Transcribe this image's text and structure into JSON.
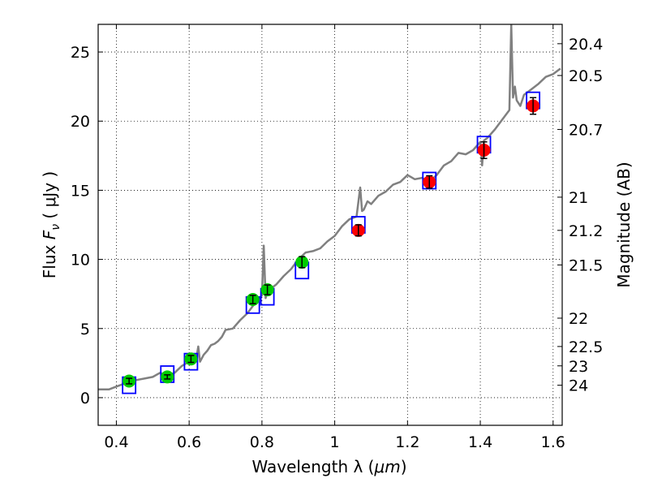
{
  "chart_data": {
    "type": "scatter",
    "title": "",
    "xlabel": "Wavelength  λ (μm)",
    "ylabel": "Flux  Fν  ( μJy )",
    "ylabel_parts": {
      "prefix": "Flux  ",
      "var": "F",
      "sub": "ν",
      "unit": "  ( μJy )"
    },
    "xlabel_parts": {
      "prefix": "Wavelength  λ (",
      "unit": "μm",
      "suffix": ")"
    },
    "y2label": "Magnitude (AB)",
    "xlim": [
      0.35,
      1.625
    ],
    "ylim": [
      -2,
      27
    ],
    "grid": true,
    "x_ticks": [
      {
        "value": 0.4,
        "label": "0.4"
      },
      {
        "value": 0.6,
        "label": "0.6"
      },
      {
        "value": 0.8,
        "label": "0.8"
      },
      {
        "value": 1.0,
        "label": "1"
      },
      {
        "value": 1.2,
        "label": "1.2"
      },
      {
        "value": 1.4,
        "label": "1.4"
      },
      {
        "value": 1.6,
        "label": "1.6"
      }
    ],
    "y_ticks": [
      {
        "value": 0,
        "label": "0"
      },
      {
        "value": 5,
        "label": "5"
      },
      {
        "value": 10,
        "label": "10"
      },
      {
        "value": 15,
        "label": "15"
      },
      {
        "value": 20,
        "label": "20"
      },
      {
        "value": 25,
        "label": "25"
      }
    ],
    "y2_ticks": [
      {
        "flux": 25.6,
        "label": "20.4"
      },
      {
        "flux": 23.3,
        "label": "20.5"
      },
      {
        "flux": 19.4,
        "label": "20.7"
      },
      {
        "flux": 14.5,
        "label": "21"
      },
      {
        "flux": 12.1,
        "label": "21.2"
      },
      {
        "flux": 9.6,
        "label": "21.5"
      },
      {
        "flux": 5.75,
        "label": "22"
      },
      {
        "flux": 3.7,
        "label": "22.5"
      },
      {
        "flux": 2.3,
        "label": "23"
      },
      {
        "flux": 0.9,
        "label": "24"
      }
    ],
    "series": [
      {
        "name": "model_spectrum",
        "kind": "line",
        "color": "#808080",
        "x": [
          0.35,
          0.38,
          0.4,
          0.42,
          0.44,
          0.46,
          0.48,
          0.5,
          0.52,
          0.54,
          0.56,
          0.58,
          0.6,
          0.62,
          0.625,
          0.63,
          0.64,
          0.65,
          0.66,
          0.67,
          0.68,
          0.69,
          0.7,
          0.72,
          0.74,
          0.76,
          0.78,
          0.8,
          0.805,
          0.81,
          0.815,
          0.82,
          0.84,
          0.86,
          0.88,
          0.9,
          0.92,
          0.94,
          0.96,
          0.98,
          1.0,
          1.02,
          1.04,
          1.06,
          1.07,
          1.075,
          1.08,
          1.09,
          1.1,
          1.12,
          1.14,
          1.16,
          1.18,
          1.2,
          1.22,
          1.24,
          1.26,
          1.28,
          1.3,
          1.32,
          1.34,
          1.36,
          1.38,
          1.4,
          1.405,
          1.41,
          1.42,
          1.44,
          1.46,
          1.48,
          1.485,
          1.49,
          1.495,
          1.5,
          1.51,
          1.52,
          1.54,
          1.56,
          1.58,
          1.6,
          1.62
        ],
        "y": [
          0.6,
          0.6,
          0.8,
          1.0,
          1.2,
          1.3,
          1.4,
          1.5,
          1.8,
          1.6,
          1.8,
          2.3,
          2.6,
          2.9,
          3.7,
          2.6,
          3.1,
          3.4,
          3.8,
          3.9,
          4.1,
          4.4,
          4.9,
          5.0,
          5.6,
          6.1,
          6.8,
          7.4,
          11.0,
          7.2,
          7.6,
          7.8,
          8.2,
          8.8,
          9.3,
          10.0,
          10.5,
          10.6,
          10.8,
          11.3,
          11.7,
          12.4,
          12.9,
          13.1,
          15.2,
          13.5,
          13.6,
          14.2,
          14.0,
          14.6,
          14.9,
          15.4,
          15.6,
          16.1,
          15.8,
          15.9,
          15.6,
          16.1,
          16.8,
          17.1,
          17.7,
          17.6,
          17.9,
          18.5,
          16.8,
          18.6,
          18.8,
          19.4,
          20.1,
          20.8,
          27.0,
          21.7,
          22.5,
          21.5,
          21.1,
          21.9,
          22.3,
          22.7,
          23.2,
          23.4,
          23.8
        ]
      },
      {
        "name": "model_photometry",
        "kind": "square",
        "color": "#0000ff",
        "points": [
          [
            0.435,
            0.9
          ],
          [
            0.54,
            1.7
          ],
          [
            0.605,
            2.6
          ],
          [
            0.775,
            6.7
          ],
          [
            0.815,
            7.3
          ],
          [
            0.91,
            9.2
          ],
          [
            1.065,
            12.5
          ],
          [
            1.26,
            15.7
          ],
          [
            1.41,
            18.3
          ],
          [
            1.545,
            21.5
          ]
        ]
      },
      {
        "name": "optical_photometry",
        "kind": "errorbar",
        "color": "#00cc00",
        "points": [
          [
            0.435,
            1.2,
            0.2
          ],
          [
            0.54,
            1.5,
            0.15
          ],
          [
            0.605,
            2.8,
            0.25
          ],
          [
            0.775,
            7.1,
            0.3
          ],
          [
            0.815,
            7.8,
            0.35
          ],
          [
            0.91,
            9.8,
            0.4
          ]
        ]
      },
      {
        "name": "nir_photometry",
        "kind": "errorbar",
        "color": "#ff0000",
        "points": [
          [
            1.065,
            12.1,
            0.4
          ],
          [
            1.26,
            15.6,
            0.45
          ],
          [
            1.41,
            17.9,
            0.6
          ],
          [
            1.545,
            21.1,
            0.6
          ]
        ]
      }
    ]
  }
}
